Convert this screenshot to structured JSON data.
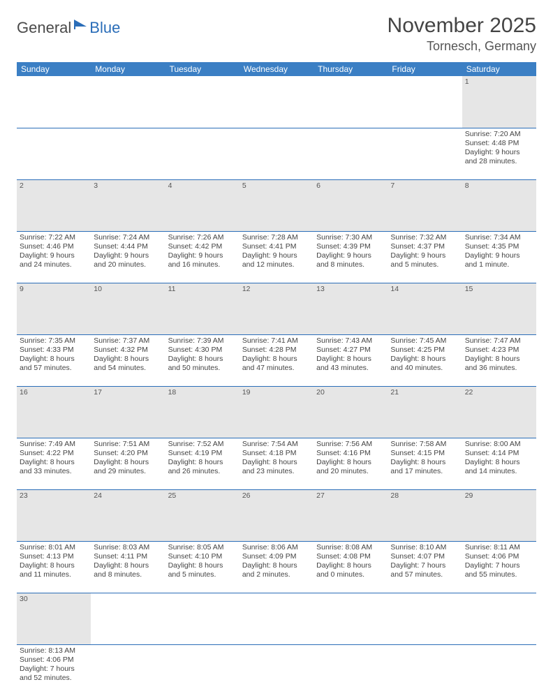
{
  "logo": {
    "text1": "General",
    "text2": "Blue"
  },
  "title": "November 2025",
  "location": "Tornesch, Germany",
  "colors": {
    "header_bg": "#3b7fc4",
    "header_fg": "#ffffff",
    "daynum_bg": "#e6e6e6",
    "rule": "#2a6db8",
    "logo_blue": "#2a6db8",
    "text": "#444444"
  },
  "weekdays": [
    "Sunday",
    "Monday",
    "Tuesday",
    "Wednesday",
    "Thursday",
    "Friday",
    "Saturday"
  ],
  "weeks": [
    [
      null,
      null,
      null,
      null,
      null,
      null,
      {
        "n": "1",
        "sunrise": "Sunrise: 7:20 AM",
        "sunset": "Sunset: 4:48 PM",
        "day1": "Daylight: 9 hours",
        "day2": "and 28 minutes."
      }
    ],
    [
      {
        "n": "2",
        "sunrise": "Sunrise: 7:22 AM",
        "sunset": "Sunset: 4:46 PM",
        "day1": "Daylight: 9 hours",
        "day2": "and 24 minutes."
      },
      {
        "n": "3",
        "sunrise": "Sunrise: 7:24 AM",
        "sunset": "Sunset: 4:44 PM",
        "day1": "Daylight: 9 hours",
        "day2": "and 20 minutes."
      },
      {
        "n": "4",
        "sunrise": "Sunrise: 7:26 AM",
        "sunset": "Sunset: 4:42 PM",
        "day1": "Daylight: 9 hours",
        "day2": "and 16 minutes."
      },
      {
        "n": "5",
        "sunrise": "Sunrise: 7:28 AM",
        "sunset": "Sunset: 4:41 PM",
        "day1": "Daylight: 9 hours",
        "day2": "and 12 minutes."
      },
      {
        "n": "6",
        "sunrise": "Sunrise: 7:30 AM",
        "sunset": "Sunset: 4:39 PM",
        "day1": "Daylight: 9 hours",
        "day2": "and 8 minutes."
      },
      {
        "n": "7",
        "sunrise": "Sunrise: 7:32 AM",
        "sunset": "Sunset: 4:37 PM",
        "day1": "Daylight: 9 hours",
        "day2": "and 5 minutes."
      },
      {
        "n": "8",
        "sunrise": "Sunrise: 7:34 AM",
        "sunset": "Sunset: 4:35 PM",
        "day1": "Daylight: 9 hours",
        "day2": "and 1 minute."
      }
    ],
    [
      {
        "n": "9",
        "sunrise": "Sunrise: 7:35 AM",
        "sunset": "Sunset: 4:33 PM",
        "day1": "Daylight: 8 hours",
        "day2": "and 57 minutes."
      },
      {
        "n": "10",
        "sunrise": "Sunrise: 7:37 AM",
        "sunset": "Sunset: 4:32 PM",
        "day1": "Daylight: 8 hours",
        "day2": "and 54 minutes."
      },
      {
        "n": "11",
        "sunrise": "Sunrise: 7:39 AM",
        "sunset": "Sunset: 4:30 PM",
        "day1": "Daylight: 8 hours",
        "day2": "and 50 minutes."
      },
      {
        "n": "12",
        "sunrise": "Sunrise: 7:41 AM",
        "sunset": "Sunset: 4:28 PM",
        "day1": "Daylight: 8 hours",
        "day2": "and 47 minutes."
      },
      {
        "n": "13",
        "sunrise": "Sunrise: 7:43 AM",
        "sunset": "Sunset: 4:27 PM",
        "day1": "Daylight: 8 hours",
        "day2": "and 43 minutes."
      },
      {
        "n": "14",
        "sunrise": "Sunrise: 7:45 AM",
        "sunset": "Sunset: 4:25 PM",
        "day1": "Daylight: 8 hours",
        "day2": "and 40 minutes."
      },
      {
        "n": "15",
        "sunrise": "Sunrise: 7:47 AM",
        "sunset": "Sunset: 4:23 PM",
        "day1": "Daylight: 8 hours",
        "day2": "and 36 minutes."
      }
    ],
    [
      {
        "n": "16",
        "sunrise": "Sunrise: 7:49 AM",
        "sunset": "Sunset: 4:22 PM",
        "day1": "Daylight: 8 hours",
        "day2": "and 33 minutes."
      },
      {
        "n": "17",
        "sunrise": "Sunrise: 7:51 AM",
        "sunset": "Sunset: 4:20 PM",
        "day1": "Daylight: 8 hours",
        "day2": "and 29 minutes."
      },
      {
        "n": "18",
        "sunrise": "Sunrise: 7:52 AM",
        "sunset": "Sunset: 4:19 PM",
        "day1": "Daylight: 8 hours",
        "day2": "and 26 minutes."
      },
      {
        "n": "19",
        "sunrise": "Sunrise: 7:54 AM",
        "sunset": "Sunset: 4:18 PM",
        "day1": "Daylight: 8 hours",
        "day2": "and 23 minutes."
      },
      {
        "n": "20",
        "sunrise": "Sunrise: 7:56 AM",
        "sunset": "Sunset: 4:16 PM",
        "day1": "Daylight: 8 hours",
        "day2": "and 20 minutes."
      },
      {
        "n": "21",
        "sunrise": "Sunrise: 7:58 AM",
        "sunset": "Sunset: 4:15 PM",
        "day1": "Daylight: 8 hours",
        "day2": "and 17 minutes."
      },
      {
        "n": "22",
        "sunrise": "Sunrise: 8:00 AM",
        "sunset": "Sunset: 4:14 PM",
        "day1": "Daylight: 8 hours",
        "day2": "and 14 minutes."
      }
    ],
    [
      {
        "n": "23",
        "sunrise": "Sunrise: 8:01 AM",
        "sunset": "Sunset: 4:13 PM",
        "day1": "Daylight: 8 hours",
        "day2": "and 11 minutes."
      },
      {
        "n": "24",
        "sunrise": "Sunrise: 8:03 AM",
        "sunset": "Sunset: 4:11 PM",
        "day1": "Daylight: 8 hours",
        "day2": "and 8 minutes."
      },
      {
        "n": "25",
        "sunrise": "Sunrise: 8:05 AM",
        "sunset": "Sunset: 4:10 PM",
        "day1": "Daylight: 8 hours",
        "day2": "and 5 minutes."
      },
      {
        "n": "26",
        "sunrise": "Sunrise: 8:06 AM",
        "sunset": "Sunset: 4:09 PM",
        "day1": "Daylight: 8 hours",
        "day2": "and 2 minutes."
      },
      {
        "n": "27",
        "sunrise": "Sunrise: 8:08 AM",
        "sunset": "Sunset: 4:08 PM",
        "day1": "Daylight: 8 hours",
        "day2": "and 0 minutes."
      },
      {
        "n": "28",
        "sunrise": "Sunrise: 8:10 AM",
        "sunset": "Sunset: 4:07 PM",
        "day1": "Daylight: 7 hours",
        "day2": "and 57 minutes."
      },
      {
        "n": "29",
        "sunrise": "Sunrise: 8:11 AM",
        "sunset": "Sunset: 4:06 PM",
        "day1": "Daylight: 7 hours",
        "day2": "and 55 minutes."
      }
    ],
    [
      {
        "n": "30",
        "sunrise": "Sunrise: 8:13 AM",
        "sunset": "Sunset: 4:06 PM",
        "day1": "Daylight: 7 hours",
        "day2": "and 52 minutes."
      },
      null,
      null,
      null,
      null,
      null,
      null
    ]
  ]
}
